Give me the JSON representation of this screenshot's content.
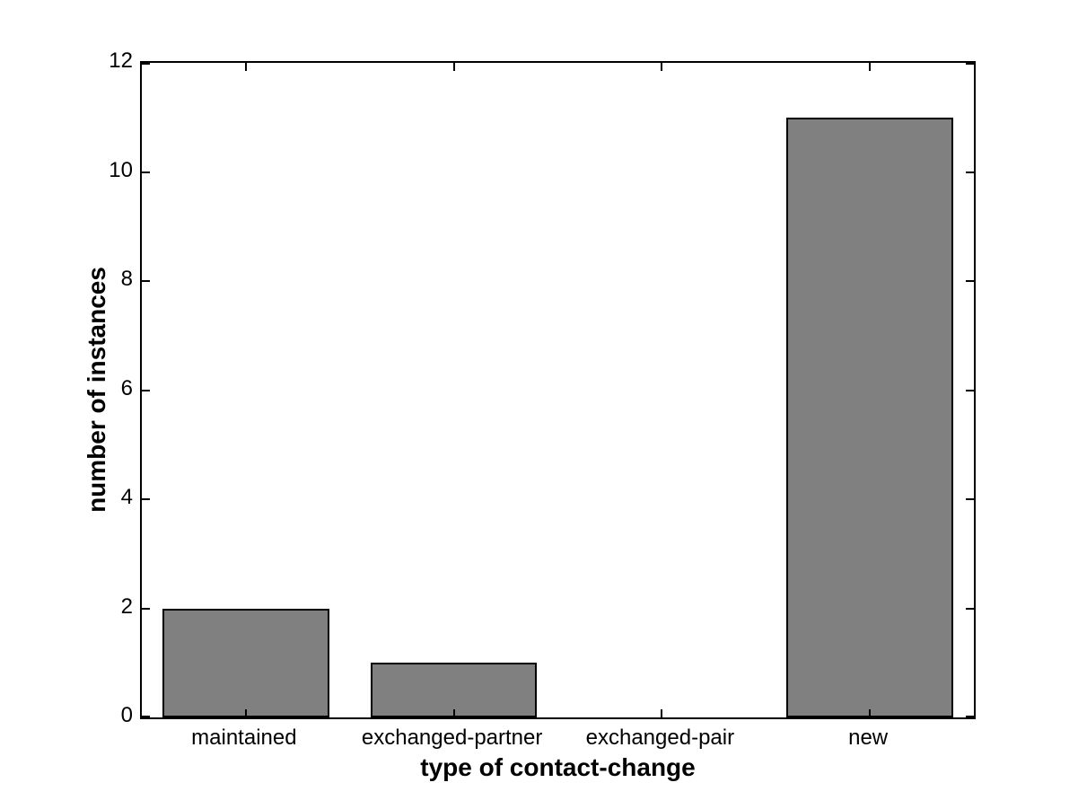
{
  "figure": {
    "background": "#ffffff"
  },
  "chart_data": {
    "type": "bar",
    "categories": [
      "maintained",
      "exchanged-partner",
      "exchanged-pair",
      "new"
    ],
    "values": [
      2,
      1,
      0,
      11
    ],
    "xlabel": "type of contact-change",
    "ylabel": "number of instances",
    "ylim": [
      0,
      12
    ],
    "yticks": [
      0,
      2,
      4,
      6,
      8,
      10,
      12
    ],
    "bar_width_ratio": 0.8,
    "bar_color": "#808080",
    "bar_edge_color": "#000000",
    "axis_color": "#000000",
    "grid": false,
    "legend": null
  }
}
